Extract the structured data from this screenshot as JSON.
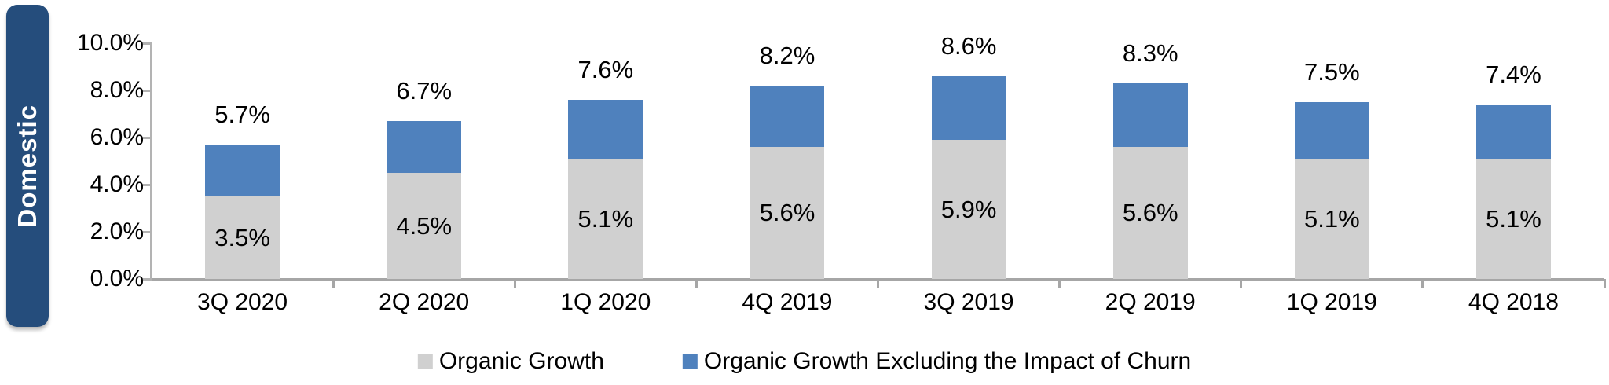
{
  "banner": {
    "label": "Domestic",
    "color": "#254D7C"
  },
  "legend": [
    {
      "label": "Organic Growth",
      "color": "#D0D0D0"
    },
    {
      "label": "Organic Growth Excluding the Impact of Churn",
      "color": "#4F81BD"
    }
  ],
  "colors": {
    "bar_gray": "#D0D0D0",
    "bar_blue": "#4F81BD",
    "axis": "#ABABAB",
    "text": "#000000"
  },
  "chart_data": {
    "type": "bar",
    "stacked": true,
    "title": "",
    "xlabel": "",
    "ylabel": "",
    "categories": [
      "3Q 2020",
      "2Q 2020",
      "1Q 2020",
      "4Q 2019",
      "3Q 2019",
      "2Q 2019",
      "1Q 2019",
      "4Q 2018"
    ],
    "series": [
      {
        "name": "Organic Growth",
        "color": "#D0D0D0",
        "values": [
          3.5,
          4.5,
          5.1,
          5.6,
          5.9,
          5.6,
          5.1,
          5.1
        ]
      },
      {
        "name": "Organic Growth Excluding the Impact of Churn",
        "color": "#4F81BD",
        "values": [
          2.2,
          2.2,
          2.5,
          2.6,
          2.7,
          2.7,
          2.4,
          2.3
        ]
      }
    ],
    "totals": [
      5.7,
      6.7,
      7.6,
      8.2,
      8.6,
      8.3,
      7.5,
      7.4
    ],
    "total_labels": [
      "5.7%",
      "6.7%",
      "7.6%",
      "8.2%",
      "8.6%",
      "8.3%",
      "7.5%",
      "7.4%"
    ],
    "inside_labels": [
      "3.5%",
      "4.5%",
      "5.1%",
      "5.6%",
      "5.9%",
      "5.6%",
      "5.1%",
      "5.1%"
    ],
    "ytick_labels": [
      "10.0%",
      "8.0%",
      "6.0%",
      "4.0%",
      "2.0%",
      "0.0%"
    ],
    "ytick_values": [
      10,
      8,
      6,
      4,
      2,
      0
    ],
    "ylim": [
      0,
      10
    ],
    "grid": false,
    "legend_position": "bottom"
  }
}
